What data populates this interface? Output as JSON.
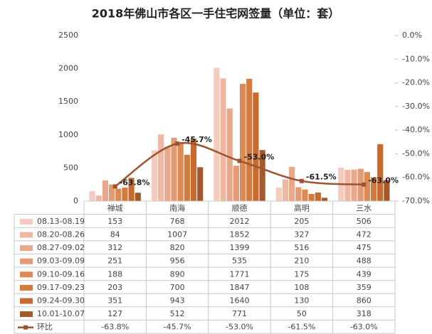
{
  "chart_data": {
    "type": "bar",
    "title": "2018年佛山市各区一手住宅网签量（单位：套）",
    "categories": [
      "禅城",
      "南海",
      "顺德",
      "高明",
      "三水"
    ],
    "series": [
      {
        "name": "08.13-08.19",
        "color": "#f4cbbd",
        "values": [
          153,
          768,
          2012,
          205,
          506
        ]
      },
      {
        "name": "08.20-08.26",
        "color": "#efb8a3",
        "values": [
          84,
          1007,
          1852,
          327,
          472
        ]
      },
      {
        "name": "08.27-09.02",
        "color": "#eaa88b",
        "values": [
          312,
          820,
          1399,
          516,
          475
        ]
      },
      {
        "name": "09.03-09.09",
        "color": "#e49a73",
        "values": [
          251,
          956,
          535,
          210,
          488
        ]
      },
      {
        "name": "09.10-09.16",
        "color": "#dd8a55",
        "values": [
          188,
          890,
          1771,
          175,
          439
        ]
      },
      {
        "name": "09.17-09.23",
        "color": "#d57a3c",
        "values": [
          203,
          700,
          1847,
          108,
          359
        ]
      },
      {
        "name": "09.24-09.30",
        "color": "#c66a2f",
        "values": [
          351,
          943,
          1640,
          130,
          860
        ]
      },
      {
        "name": "10.01-10.07",
        "color": "#a4592b",
        "values": [
          127,
          512,
          771,
          50,
          318
        ]
      },
      {
        "name": "环比",
        "type": "line",
        "axis": "y2",
        "color": "#9c5430",
        "values": [
          -63.8,
          -45.7,
          -53.0,
          -61.5,
          -63.0
        ],
        "value_labels": [
          "-63.8%",
          "-45.7%",
          "-53.0%",
          "-61.5%",
          "-63.0%"
        ]
      }
    ],
    "ylim": [
      0,
      2500
    ],
    "yticks": [
      0,
      500,
      1000,
      1500,
      2000,
      2500
    ],
    "y2lim": [
      0,
      -70
    ],
    "y2ticks": [
      {
        "value": 0,
        "label": "0.0%"
      },
      {
        "value": -10,
        "label": "-10.0%"
      },
      {
        "value": -20,
        "label": "-20.0%"
      },
      {
        "value": -30,
        "label": "-30.0%"
      },
      {
        "value": -40,
        "label": "-40.0%"
      },
      {
        "value": -50,
        "label": "-50.0%"
      },
      {
        "value": -60,
        "label": "-60.0%"
      },
      {
        "value": -70,
        "label": "-70.0%"
      }
    ]
  }
}
